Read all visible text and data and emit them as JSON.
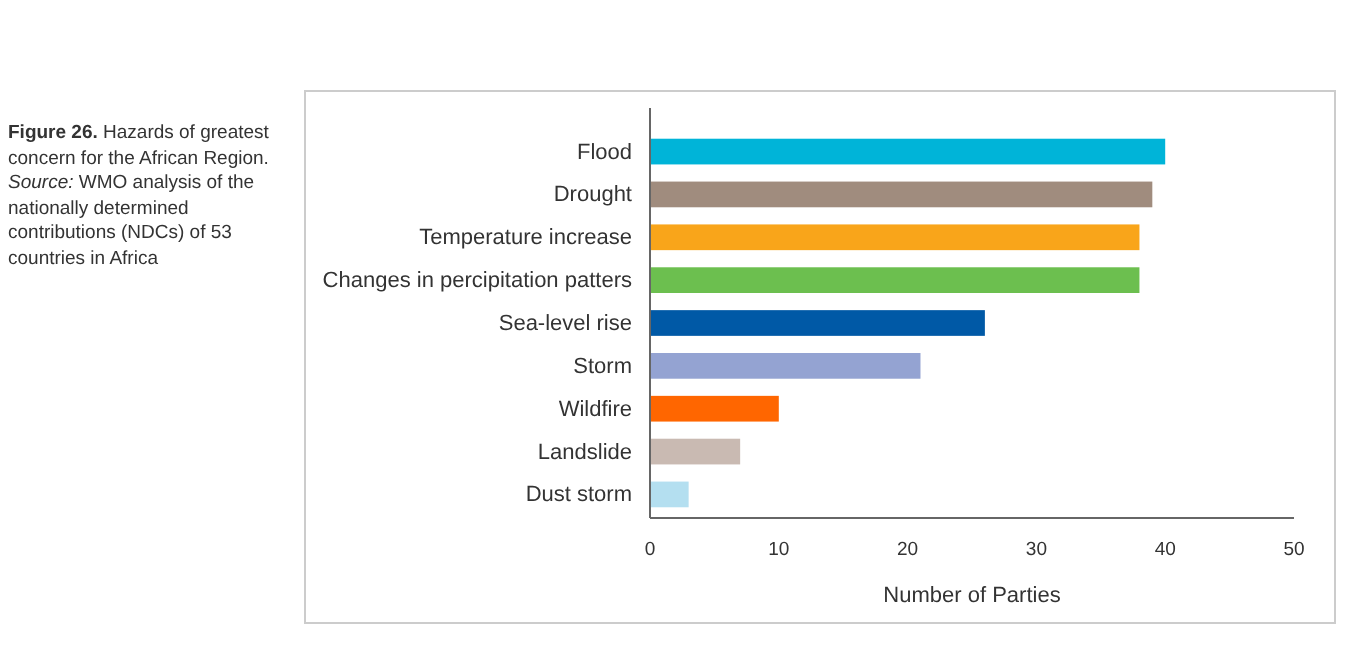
{
  "chart_data": {
    "type": "bar",
    "orientation": "horizontal",
    "title": "Figure 26. Hazards of greatest concern for the African Region.",
    "annotations": [
      "Source: WMO analysis of the nationally determined contributions (NDCs) of 53 countries in Africa"
    ],
    "categories": [
      "Flood",
      "Drought",
      "Temperature increase",
      "Changes in percipitation patters",
      "Sea-level rise",
      "Storm",
      "Wildfire",
      "Landslide",
      "Dust storm"
    ],
    "values": [
      40,
      39,
      38,
      38,
      26,
      21,
      10,
      7,
      3
    ],
    "colors": [
      "#00b4d8",
      "#a08c7e",
      "#f9a51a",
      "#6cbf4f",
      "#0059a6",
      "#94a3d2",
      "#ff6600",
      "#c9bab2",
      "#b4dff0"
    ],
    "xlabel": "Number of Parties",
    "xlim": [
      0,
      50
    ],
    "xticks": [
      0,
      10,
      20,
      30,
      40,
      50
    ],
    "grid": false
  }
}
